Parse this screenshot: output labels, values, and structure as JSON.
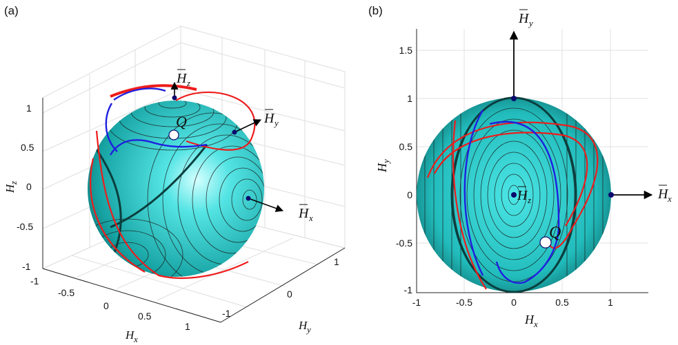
{
  "panel_a": {
    "label": "(a)",
    "axis_labels": {
      "x": {
        "base": "H",
        "sub": "x"
      },
      "y": {
        "base": "H",
        "sub": "y"
      },
      "z": {
        "base": "H",
        "sub": "z"
      }
    },
    "z_ticks": [
      "1",
      "0.5",
      "0",
      "-0.5",
      "-1"
    ],
    "x_ticks": [
      "-1",
      "-0.5",
      "0",
      "0.5",
      "1"
    ],
    "y_ticks": [
      "-1",
      "0",
      "1"
    ],
    "point_label": "Q",
    "arrow_labels": {
      "hz": {
        "base": "H",
        "sub": "z"
      },
      "hy": {
        "base": "H",
        "sub": "y"
      },
      "hx": {
        "base": "H",
        "sub": "x"
      }
    }
  },
  "panel_b": {
    "label": "(b)",
    "axis_labels": {
      "x": {
        "base": "H",
        "sub": "x"
      },
      "y": {
        "base": "H",
        "sub": "y"
      }
    },
    "x_ticks": [
      "-1",
      "-0.5",
      "0",
      "0.5",
      "1"
    ],
    "y_ticks": [
      "1.5",
      "1",
      "0.5",
      "0",
      "-0.5",
      "-1"
    ],
    "point_label": "Q",
    "arrow_labels": {
      "hy": {
        "base": "H",
        "sub": "y"
      },
      "hx": {
        "base": "H",
        "sub": "x"
      },
      "hz": {
        "base": "H",
        "sub": "z"
      }
    }
  },
  "colors": {
    "sphere": "#35d6d6",
    "sphere_dark": "#0f6e6e",
    "contour": "#1a1a1a",
    "red_trajectory": "#ee1c1c",
    "blue_trajectory": "#1f1fe0",
    "axis_dot": "#0a0a6e",
    "grid": "#d9d9d9"
  }
}
